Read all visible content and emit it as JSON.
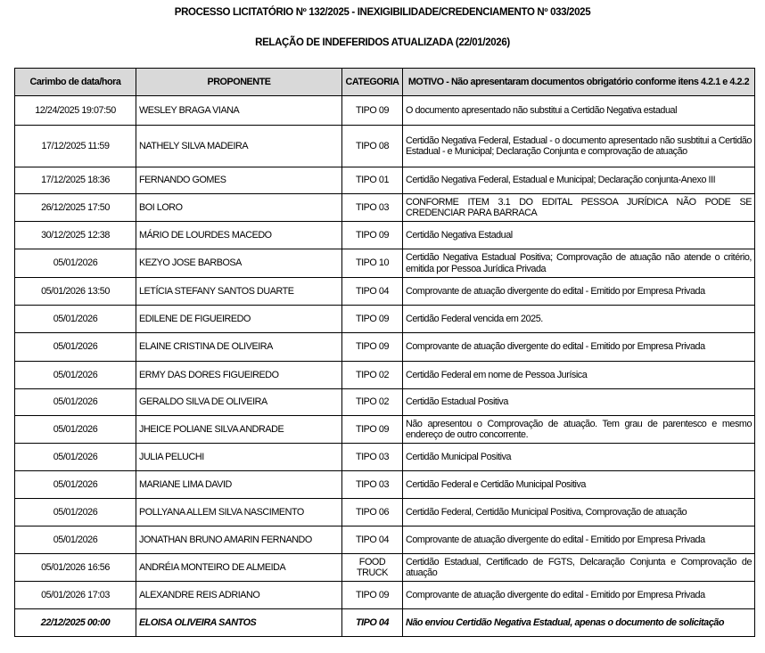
{
  "header": {
    "title": "PROCESSO LICITATÓRIO Nº 132/2025 - INEXIGIBILIDADE/CREDENCIAMENTO Nº 033/2025",
    "subtitle": "RELAÇÃO DE INDEFERIDOS ATUALIZADA (22/01/2026)"
  },
  "table": {
    "columns": [
      "Carimbo de data/hora",
      "PROPONENTE",
      "CATEGORIA",
      "MOTIVO - Não apresentaram documentos obrigatório conforme itens 4.2.1 e 4.2.2"
    ],
    "header_bg": "#d9d9d9",
    "rows": [
      {
        "datetime": "12/24/2025 19:07:50",
        "proponente": "WESLEY BRAGA VIANA",
        "categoria": "TIPO 09",
        "motivo": "O documento apresentado não substitui a Certidão Negativa estadual"
      },
      {
        "datetime": "17/12/2025 11:59",
        "proponente": "NATHELY SILVA MADEIRA",
        "categoria": "TIPO 08",
        "motivo": "Certidão Negativa Federal, Estadual - o documento apresentado não susbtitui a Certidão Estadual - e Municipal; Declaração Conjunta e comprovação de atuação"
      },
      {
        "datetime": "17/12/2025 18:36",
        "proponente": "FERNANDO GOMES",
        "categoria": "TIPO 01",
        "motivo": "Certidão Negativa Federal, Estadual e Municipal; Declaração conjunta-Anexo III"
      },
      {
        "datetime": "26/12/2025 17:50",
        "proponente": "BOI LORO",
        "categoria": "TIPO 03",
        "motivo": "CONFORME ITEM 3.1 DO EDITAL PESSOA JURÍDICA NÃO PODE SE CREDENCIAR PARA BARRACA"
      },
      {
        "datetime": "30/12/2025 12:38",
        "proponente": "MÁRIO DE LOURDES MACEDO",
        "categoria": "TIPO 09",
        "motivo": "Certidão Negativa Estadual"
      },
      {
        "datetime": "05/01/2026",
        "proponente": "KEZYO JOSE BARBOSA",
        "categoria": "TIPO 10",
        "motivo": "Certidão Negativa Estadual Positiva; Comprovação de atuação não atende o critério, emitida por Pessoa Jurídica Privada"
      },
      {
        "datetime": "05/01/2026 13:50",
        "proponente": "LETÍCIA STEFANY SANTOS DUARTE",
        "categoria": "TIPO 04",
        "motivo": "Comprovante de atuação divergente do edital - Emitido por Empresa Privada"
      },
      {
        "datetime": "05/01/2026",
        "proponente": "EDILENE DE FIGUEIREDO",
        "categoria": "TIPO 09",
        "motivo": "Certidão Federal vencida em 2025."
      },
      {
        "datetime": "05/01/2026",
        "proponente": "ELAINE CRISTINA DE OLIVEIRA",
        "categoria": "TIPO 09",
        "motivo": "Comprovante de atuação divergente do edital - Emitido por Empresa Privada"
      },
      {
        "datetime": "05/01/2026",
        "proponente": "ERMY DAS DORES FIGUEIREDO",
        "categoria": "TIPO 02",
        "motivo": "Certidão Federal em nome de Pessoa Jurísica"
      },
      {
        "datetime": "05/01/2026",
        "proponente": "GERALDO SILVA DE OLIVEIRA",
        "categoria": "TIPO 02",
        "motivo": "Certidão Estadual Positiva"
      },
      {
        "datetime": "05/01/2026",
        "proponente": "JHEICE POLIANE SILVA ANDRADE",
        "categoria": "TIPO 09",
        "motivo": "Não apresentou o Comprovação de atuação. Tem grau de  parentesco e mesmo endereço de outro concorrente."
      },
      {
        "datetime": "05/01/2026",
        "proponente": "JULIA PELUCHI",
        "categoria": "TIPO 03",
        "motivo": "Certidão Municipal Positiva"
      },
      {
        "datetime": "05/01/2026",
        "proponente": "MARIANE LIMA DAVID",
        "categoria": "TIPO 03",
        "motivo": "Certidão Federal e Certidão Municipal Positiva"
      },
      {
        "datetime": "05/01/2026",
        "proponente": "POLLYANA ALLEM SILVA NASCIMENTO",
        "categoria": "TIPO 06",
        "motivo": "Certidão Federal, Certidão Municipal Positiva, Comprovação de atuação"
      },
      {
        "datetime": "05/01/2026",
        "proponente": "JONATHAN BRUNO AMARIN FERNANDO",
        "categoria": "TIPO 04",
        "motivo": "Comprovante de atuação divergente do edital - Emitido por Empresa Privada"
      },
      {
        "datetime": "05/01/2026 16:56",
        "proponente": "ANDRÉIA MONTEIRO DE ALMEIDA",
        "categoria": "FOOD TRUCK",
        "motivo": "Certidão Estadual, Certificado de FGTS, Delcaração Conjunta e Comprovação de atuação"
      },
      {
        "datetime": "05/01/2026 17:03",
        "proponente": "ALEXANDRE REIS ADRIANO",
        "categoria": "TIPO 09",
        "motivo": "Comprovante de atuação divergente do edital - Emitido por Empresa Privada"
      },
      {
        "datetime": "22/12/2025 00:00",
        "proponente": "ELOISA OLIVEIRA SANTOS",
        "categoria": "TIPO 04",
        "motivo": "Não enviou Certidão Negativa Estadual, apenas o documento de solicitação",
        "italic": true
      }
    ]
  }
}
